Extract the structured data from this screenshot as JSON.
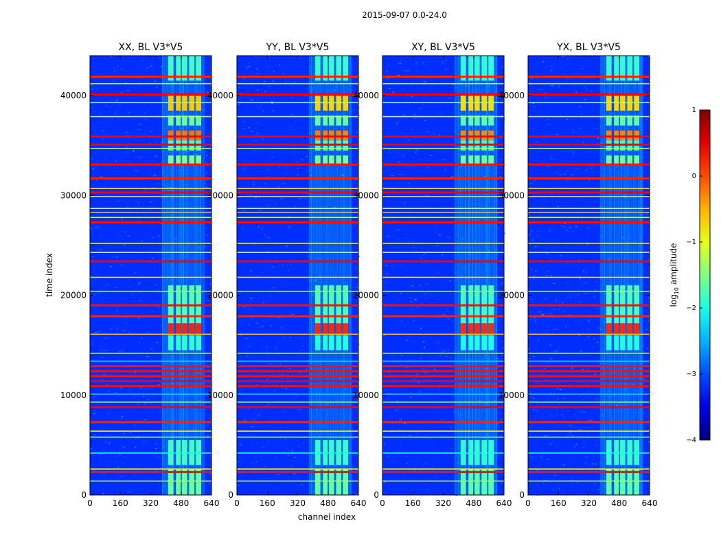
{
  "chart_data": {
    "type": "heatmap",
    "title": "2015-09-07 0.0-24.0",
    "xlabel": "channel index",
    "ylabel": "time index",
    "xlim": [
      0,
      640
    ],
    "ylim": [
      0,
      44000
    ],
    "x_ticks": [
      "0",
      "160",
      "320",
      "480",
      "640"
    ],
    "x_tick_values": [
      0,
      160,
      320,
      480,
      640
    ],
    "y_ticks": [
      "0",
      "10000",
      "20000",
      "30000",
      "40000"
    ],
    "y_tick_values": [
      0,
      10000,
      20000,
      30000,
      40000
    ],
    "panels": [
      {
        "title": "XX, BL V3*V5",
        "strength": 1.0
      },
      {
        "title": "YY, BL V3*V5",
        "strength": 0.9
      },
      {
        "title": "XY, BL V3*V5",
        "strength": 0.8
      },
      {
        "title": "YX, BL V3*V5",
        "strength": 0.85
      }
    ],
    "colorbar": {
      "label_prefix": "log",
      "label_sub": "10",
      "label_suffix": " amplitude",
      "range": [
        -4,
        1
      ],
      "ticks": [
        "1",
        "0",
        "−1",
        "−2",
        "−3",
        "−4"
      ],
      "tick_values": [
        1,
        0,
        -1,
        -2,
        -3,
        -4
      ],
      "colormap": "jet"
    },
    "rfi_band_channels": [
      [
        412,
        440
      ],
      [
        453,
        478
      ],
      [
        485,
        512
      ],
      [
        522,
        550
      ],
      [
        558,
        586
      ]
    ],
    "rfi_band_time_segments": [
      {
        "range": [
          0,
          2600
        ],
        "level": -1.6
      },
      {
        "range": [
          3000,
          5500
        ],
        "level": -1.8
      },
      {
        "range": [
          14500,
          16000
        ],
        "level": -1.9
      },
      {
        "range": [
          16000,
          17200
        ],
        "level": 0.2
      },
      {
        "range": [
          17200,
          21000
        ],
        "level": -1.7
      },
      {
        "range": [
          33000,
          34000
        ],
        "level": -1.5
      },
      {
        "range": [
          34500,
          35500
        ],
        "level": -1.7
      },
      {
        "range": [
          35500,
          36500
        ],
        "level": -0.2
      },
      {
        "range": [
          37000,
          38000
        ],
        "level": -1.6
      },
      {
        "range": [
          38500,
          40000
        ],
        "level": -0.6
      },
      {
        "range": [
          41500,
          44000
        ],
        "level": -1.8
      }
    ],
    "flagged_times": [
      {
        "t": 1400,
        "level": -1.2
      },
      {
        "t": 2300,
        "level": 0.3
      },
      {
        "t": 2600,
        "level": -0.9
      },
      {
        "t": 4200,
        "level": -2.0
      },
      {
        "t": 5800,
        "level": -1.5
      },
      {
        "t": 6400,
        "level": -0.8
      },
      {
        "t": 7300,
        "level": 0.2
      },
      {
        "t": 8800,
        "level": 0.4
      },
      {
        "t": 9300,
        "level": -1.4
      },
      {
        "t": 10100,
        "level": -2.3
      },
      {
        "t": 10900,
        "level": 0.3
      },
      {
        "t": 11400,
        "level": 0.4
      },
      {
        "t": 11900,
        "level": 0.3
      },
      {
        "t": 12400,
        "level": 0.3
      },
      {
        "t": 12900,
        "level": 0.3
      },
      {
        "t": 13400,
        "level": -2.3
      },
      {
        "t": 14200,
        "level": -1.2
      },
      {
        "t": 16100,
        "level": -0.5
      },
      {
        "t": 17900,
        "level": 0.2
      },
      {
        "t": 19000,
        "level": 0.3
      },
      {
        "t": 20400,
        "level": -1.3
      },
      {
        "t": 21800,
        "level": -0.7
      },
      {
        "t": 23400,
        "level": 0.4
      },
      {
        "t": 24300,
        "level": -1.0
      },
      {
        "t": 25200,
        "level": -0.8
      },
      {
        "t": 27300,
        "level": 0.3
      },
      {
        "t": 27800,
        "level": -1.2
      },
      {
        "t": 28300,
        "level": -0.5
      },
      {
        "t": 28700,
        "level": -1.0
      },
      {
        "t": 29900,
        "level": -0.7
      },
      {
        "t": 30300,
        "level": 0.4
      },
      {
        "t": 30700,
        "level": -0.7
      },
      {
        "t": 31700,
        "level": 0.2
      },
      {
        "t": 33100,
        "level": 0.3
      },
      {
        "t": 34700,
        "level": -1.2
      },
      {
        "t": 35100,
        "level": 0.4
      },
      {
        "t": 35900,
        "level": 0.4
      },
      {
        "t": 37900,
        "level": -1.0
      },
      {
        "t": 39300,
        "level": -1.3
      },
      {
        "t": 40100,
        "level": 0.4
      },
      {
        "t": 41200,
        "level": -1.2
      },
      {
        "t": 41900,
        "level": 0.2
      }
    ]
  }
}
